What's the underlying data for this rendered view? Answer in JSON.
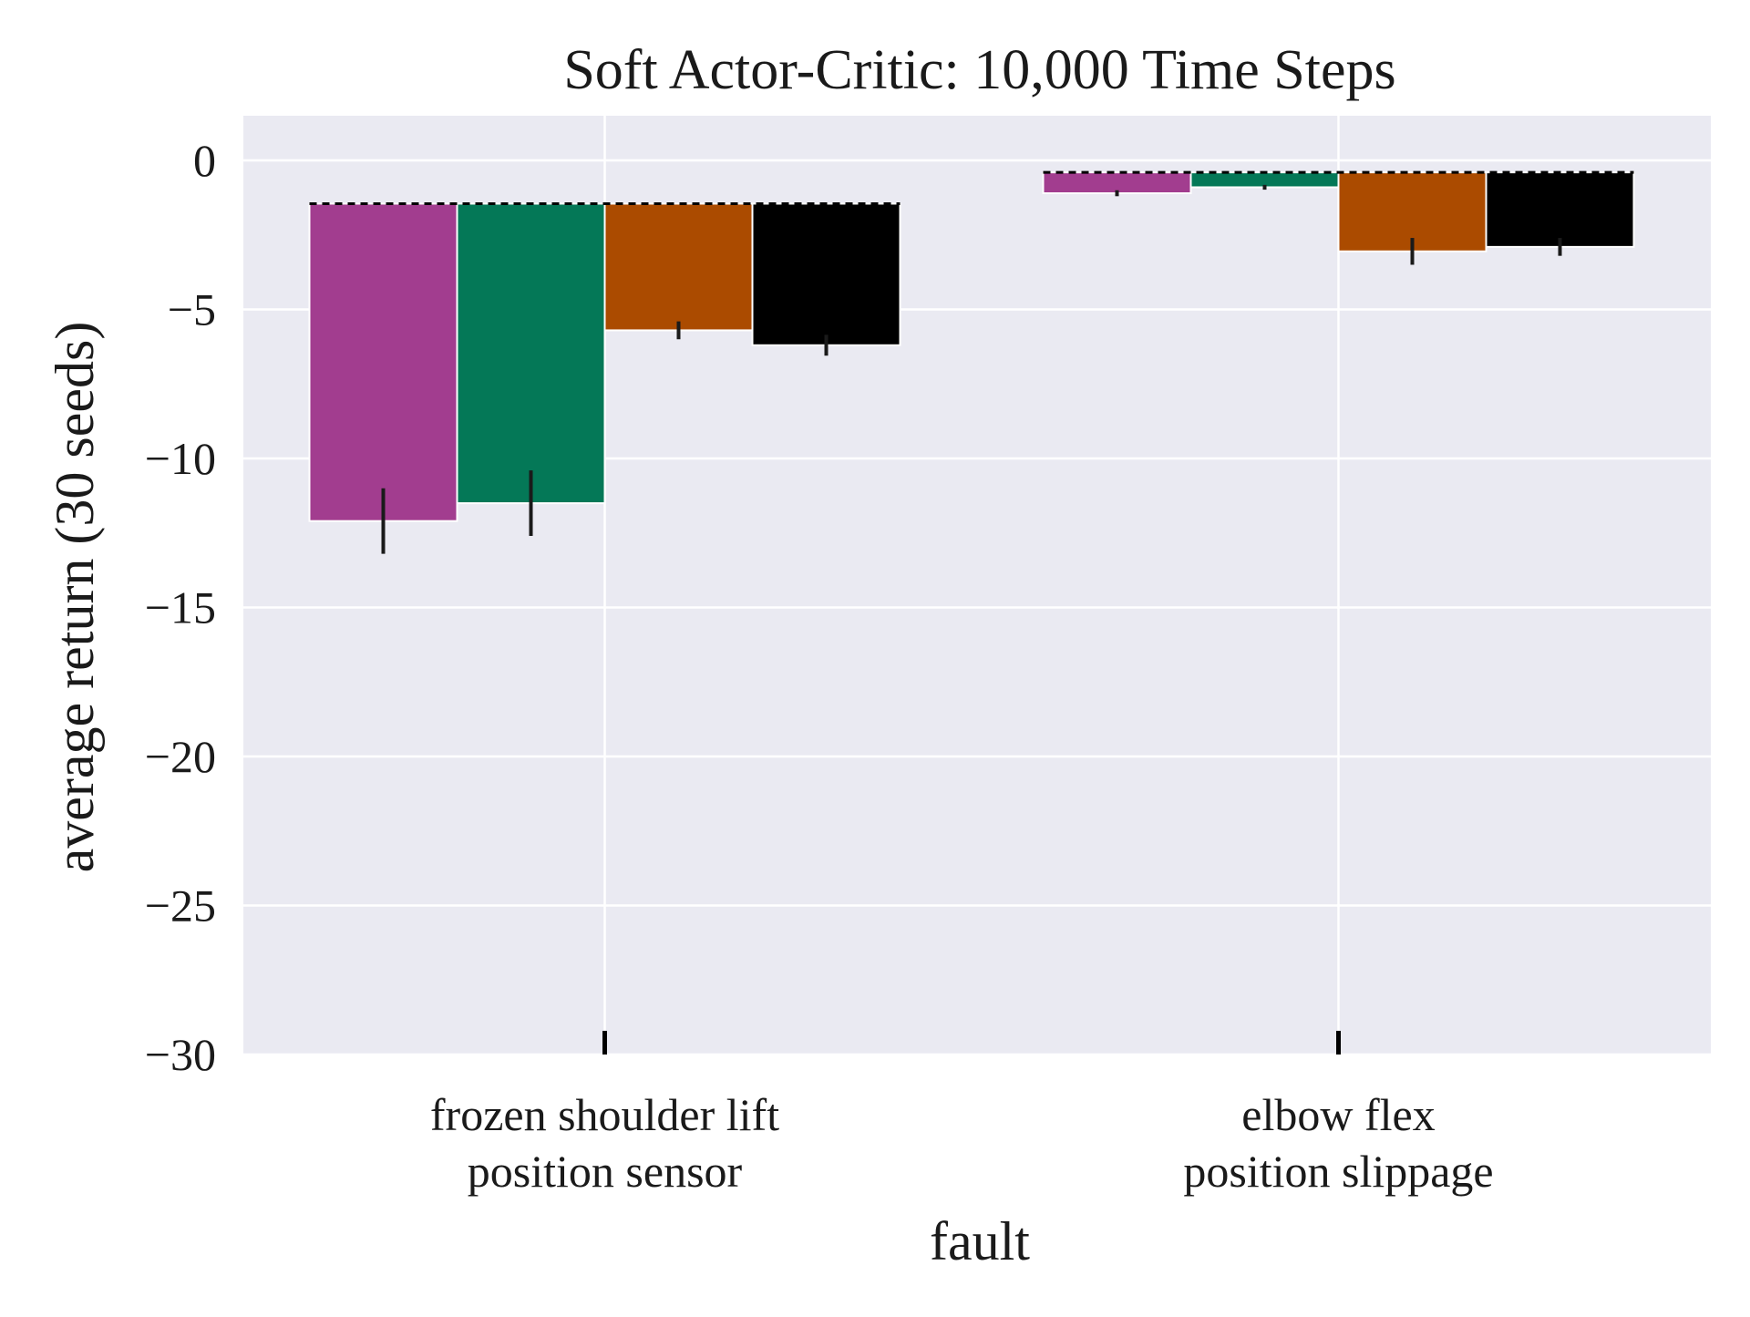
{
  "chart_data": {
    "type": "bar",
    "title": "Soft Actor-Critic: 10,000 Time Steps",
    "xlabel": "fault",
    "ylabel": "average return (30 seeds)",
    "ylim": [
      -30,
      1.5
    ],
    "yticks": [
      0,
      -5,
      -10,
      -15,
      -20,
      -25,
      -30
    ],
    "ytick_labels": [
      "0",
      "−5",
      "−10",
      "−15",
      "−20",
      "−25",
      "−30"
    ],
    "grid": true,
    "legend": false,
    "categories": [
      [
        "frozen shoulder lift",
        "position sensor"
      ],
      [
        "elbow flex",
        "position slippage"
      ]
    ],
    "baseline_dashed": [
      -1.45,
      -0.4
    ],
    "series": [
      {
        "color": "#a23d8f",
        "values": [
          -12.1,
          -1.1
        ],
        "error": [
          1.1,
          0.1
        ]
      },
      {
        "color": "#047857",
        "values": [
          -11.5,
          -0.9
        ],
        "error": [
          1.1,
          0.08
        ]
      },
      {
        "color": "#ab4b00",
        "values": [
          -5.7,
          -3.05
        ],
        "error": [
          0.3,
          0.45
        ]
      },
      {
        "color": "#000000",
        "values": [
          -6.2,
          -2.9
        ],
        "error": [
          0.35,
          0.3
        ]
      }
    ],
    "tick_marks_at": -30
  }
}
